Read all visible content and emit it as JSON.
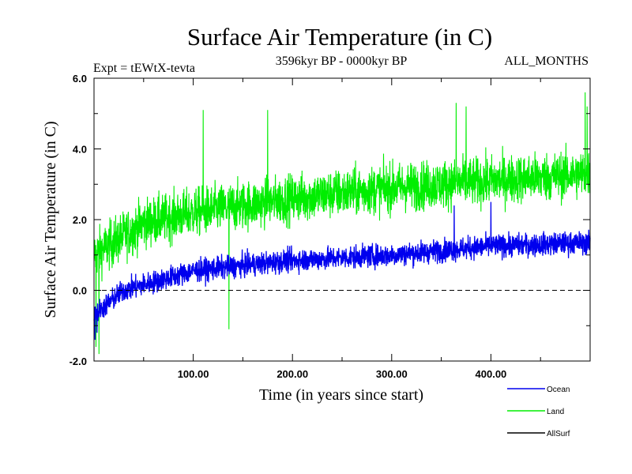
{
  "chart_data": {
    "type": "line",
    "title": "Surface Air Temperature (in C)",
    "experiment": "Expt = tEWtX-tevta",
    "period": "3596kyr BP - 0000kyr BP",
    "months": "ALL_MONTHS",
    "xlabel": "Time (in years since start)",
    "ylabel": "Surface Air Temperature (in C)",
    "xlim": [
      0,
      500
    ],
    "ylim": [
      -2.0,
      6.0
    ],
    "x_ticks": [
      {
        "value": 100,
        "label": "100.00"
      },
      {
        "value": 200,
        "label": "200.00"
      },
      {
        "value": 300,
        "label": "300.00"
      },
      {
        "value": 400,
        "label": "400.00"
      }
    ],
    "y_ticks": [
      {
        "value": -2.0,
        "label": "-2.0"
      },
      {
        "value": 0.0,
        "label": "0.0"
      },
      {
        "value": 2.0,
        "label": "2.0"
      },
      {
        "value": 4.0,
        "label": "4.0"
      },
      {
        "value": 6.0,
        "label": "6.0"
      }
    ],
    "reference_line": {
      "y": 0.0,
      "style": "dashed"
    },
    "legend_position": "bottom-right, outside plot",
    "series": [
      {
        "name": "Land",
        "color": "#00ee00",
        "trend": {
          "x": [
            0,
            50,
            100,
            200,
            300,
            400,
            500
          ],
          "y": [
            1.0,
            1.9,
            2.2,
            2.6,
            2.9,
            3.1,
            3.3
          ]
        },
        "noise_amplitude": 0.85,
        "spikes": [
          {
            "x": 2,
            "y": -1.6
          },
          {
            "x": 5,
            "y": -1.8
          },
          {
            "x": 110,
            "y": 5.1
          },
          {
            "x": 136,
            "y": -1.1
          },
          {
            "x": 175,
            "y": 5.1
          },
          {
            "x": 365,
            "y": 5.3
          },
          {
            "x": 375,
            "y": 5.2
          },
          {
            "x": 495,
            "y": 5.6
          },
          {
            "x": 497,
            "y": 5.2
          }
        ]
      },
      {
        "name": "Ocean",
        "color": "#0000ee",
        "trend": {
          "x": [
            0,
            30,
            100,
            200,
            300,
            400,
            500
          ],
          "y": [
            -0.7,
            0.0,
            0.55,
            0.85,
            1.0,
            1.25,
            1.35
          ]
        },
        "noise_amplitude": 0.4,
        "spikes": [
          {
            "x": 1,
            "y": -1.4
          },
          {
            "x": 3,
            "y": -1.2
          },
          {
            "x": 363,
            "y": 2.4
          },
          {
            "x": 400,
            "y": 2.5
          }
        ]
      },
      {
        "name": "AllSurf",
        "color": "#000000",
        "trend": {
          "x": [],
          "y": []
        },
        "noise_amplitude": 0,
        "spikes": []
      }
    ]
  }
}
